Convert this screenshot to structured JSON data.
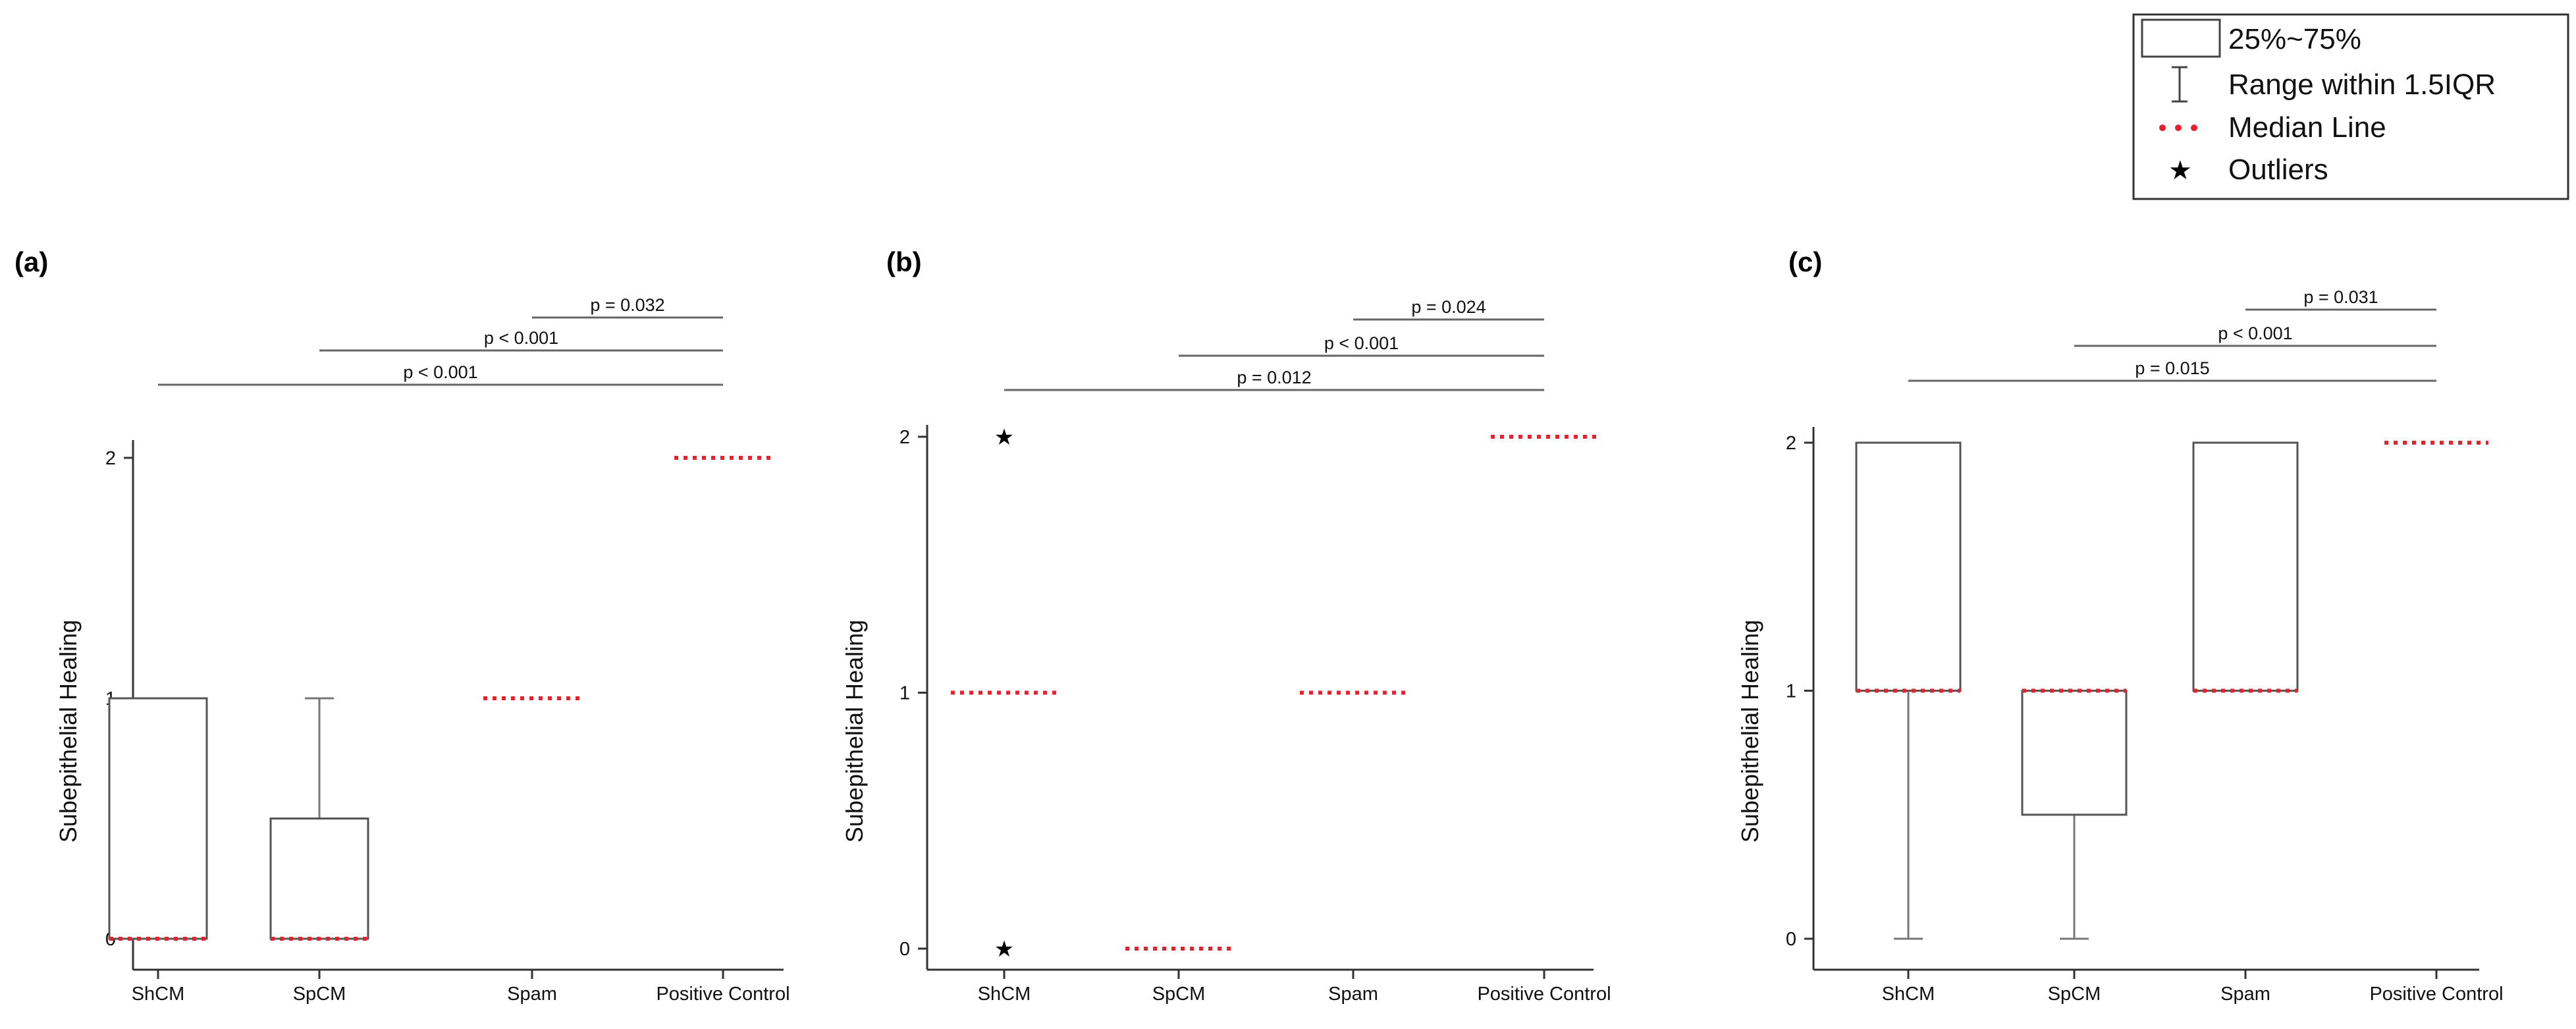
{
  "legend": {
    "entries": [
      {
        "key": "box",
        "label": "25%~75%"
      },
      {
        "key": "range",
        "label": "Range within 1.5IQR"
      },
      {
        "key": "median",
        "label": "Median Line"
      },
      {
        "key": "outlier",
        "label": "Outliers",
        "symbol": "★"
      }
    ]
  },
  "colors": {
    "median": "#e8222a",
    "box_stroke": "#555555",
    "axis": "#333333"
  },
  "chart_data": [
    {
      "type": "box",
      "panel_label": "(a)",
      "ylabel": "Subepithelial Healing",
      "ylim": [
        0,
        2
      ],
      "yticks": [
        "0",
        "1",
        "2"
      ],
      "categories": [
        "ShCM",
        "SpCM",
        "Spam",
        "Positive Control"
      ],
      "boxes": [
        {
          "category": "ShCM",
          "q1": 0,
          "median": 0,
          "q3": 1,
          "whisker_low": 0,
          "whisker_high": 1,
          "outliers": []
        },
        {
          "category": "SpCM",
          "q1": 0,
          "median": 0,
          "q3": 0.5,
          "whisker_low": 0,
          "whisker_high": 1,
          "outliers": []
        },
        {
          "category": "Spam",
          "q1": 1,
          "median": 1,
          "q3": 1,
          "whisker_low": 1,
          "whisker_high": 1,
          "outliers": []
        },
        {
          "category": "Positive Control",
          "q1": 2,
          "median": 2,
          "q3": 2,
          "whisker_low": 2,
          "whisker_high": 2,
          "outliers": []
        }
      ],
      "significance": [
        {
          "from": "Spam",
          "to": "Positive Control",
          "label": "p = 0.032"
        },
        {
          "from": "SpCM",
          "to": "Positive Control",
          "label": "p < 0.001"
        },
        {
          "from": "ShCM",
          "to": "Positive Control",
          "label": "p < 0.001"
        }
      ]
    },
    {
      "type": "box",
      "panel_label": "(b)",
      "ylabel": "Subepithelial Healing",
      "ylim": [
        0,
        2
      ],
      "yticks": [
        "0",
        "1",
        "2"
      ],
      "categories": [
        "ShCM",
        "SpCM",
        "Spam",
        "Positive Control"
      ],
      "boxes": [
        {
          "category": "ShCM",
          "q1": 1,
          "median": 1,
          "q3": 1,
          "whisker_low": 1,
          "whisker_high": 1,
          "outliers": [
            0,
            2
          ]
        },
        {
          "category": "SpCM",
          "q1": 0,
          "median": 0,
          "q3": 0,
          "whisker_low": 0,
          "whisker_high": 0,
          "outliers": []
        },
        {
          "category": "Spam",
          "q1": 1,
          "median": 1,
          "q3": 1,
          "whisker_low": 1,
          "whisker_high": 1,
          "outliers": []
        },
        {
          "category": "Positive Control",
          "q1": 2,
          "median": 2,
          "q3": 2,
          "whisker_low": 2,
          "whisker_high": 2,
          "outliers": []
        }
      ],
      "significance": [
        {
          "from": "Spam",
          "to": "Positive Control",
          "label": "p = 0.024"
        },
        {
          "from": "SpCM",
          "to": "Positive Control",
          "label": "p < 0.001"
        },
        {
          "from": "ShCM",
          "to": "Positive Control",
          "label": "p = 0.012"
        }
      ]
    },
    {
      "type": "box",
      "panel_label": "(c)",
      "ylabel": "Subepithelial Healing",
      "ylim": [
        0,
        2
      ],
      "yticks": [
        "0",
        "1",
        "2"
      ],
      "categories": [
        "ShCM",
        "SpCM",
        "Spam",
        "Positive Control"
      ],
      "boxes": [
        {
          "category": "ShCM",
          "q1": 1,
          "median": 1,
          "q3": 2,
          "whisker_low": 0,
          "whisker_high": 2,
          "outliers": []
        },
        {
          "category": "SpCM",
          "q1": 0.5,
          "median": 1,
          "q3": 1,
          "whisker_low": 0,
          "whisker_high": 1,
          "outliers": []
        },
        {
          "category": "Spam",
          "q1": 1,
          "median": 1,
          "q3": 2,
          "whisker_low": 1,
          "whisker_high": 2,
          "outliers": []
        },
        {
          "category": "Positive Control",
          "q1": 2,
          "median": 2,
          "q3": 2,
          "whisker_low": 2,
          "whisker_high": 2,
          "outliers": []
        }
      ],
      "significance": [
        {
          "from": "Spam",
          "to": "Positive Control",
          "label": "p = 0.031"
        },
        {
          "from": "SpCM",
          "to": "Positive Control",
          "label": "p < 0.001"
        },
        {
          "from": "ShCM",
          "to": "Positive Control",
          "label": "p = 0.015"
        }
      ]
    }
  ]
}
